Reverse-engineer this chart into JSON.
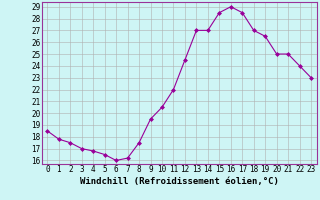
{
  "hours": [
    0,
    1,
    2,
    3,
    4,
    5,
    6,
    7,
    8,
    9,
    10,
    11,
    12,
    13,
    14,
    15,
    16,
    17,
    18,
    19,
    20,
    21,
    22,
    23
  ],
  "values": [
    18.5,
    17.8,
    17.5,
    17.0,
    16.8,
    16.5,
    16.0,
    16.2,
    17.5,
    19.5,
    20.5,
    22.0,
    24.5,
    27.0,
    27.0,
    28.5,
    29.0,
    28.5,
    27.0,
    26.5,
    25.0,
    25.0,
    24.0,
    23.0
  ],
  "xlabel": "Windchill (Refroidissement éolien,°C)",
  "bg_color": "#cef5f5",
  "grid_color": "#b0b0b0",
  "line_color": "#990099",
  "ylim": [
    16,
    29
  ],
  "yticks": [
    16,
    17,
    18,
    19,
    20,
    21,
    22,
    23,
    24,
    25,
    26,
    27,
    28,
    29
  ],
  "xticks": [
    0,
    1,
    2,
    3,
    4,
    5,
    6,
    7,
    8,
    9,
    10,
    11,
    12,
    13,
    14,
    15,
    16,
    17,
    18,
    19,
    20,
    21,
    22,
    23
  ],
  "tick_fontsize": 5.5,
  "xlabel_fontsize": 6.5,
  "border_color": "#993399"
}
